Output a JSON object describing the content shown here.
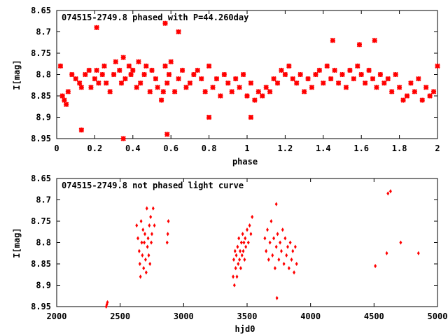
{
  "chart_data": [
    {
      "type": "scatter",
      "title": "074515-2749.8 phased with P=44.260day",
      "xlabel": "phase",
      "ylabel": "I[mag]",
      "xlim": [
        0,
        2
      ],
      "ylim": [
        8.95,
        8.65
      ],
      "y_inverted": true,
      "x_ticks": [
        0,
        0.2,
        0.4,
        0.6,
        0.8,
        1,
        1.2,
        1.4,
        1.6,
        1.8,
        2
      ],
      "x_tick_labels": [
        "0",
        "0.2",
        "0.4",
        "0.6",
        "0.8",
        "1",
        "1.2",
        "1.4",
        "1.6",
        "1.8",
        "2"
      ],
      "y_ticks": [
        8.65,
        8.7,
        8.75,
        8.8,
        8.85,
        8.9,
        8.95
      ],
      "y_tick_labels": [
        "8.65",
        "8.7",
        "8.75",
        "8.8",
        "8.85",
        "8.9",
        "8.95"
      ],
      "grid": false,
      "marker_color": "#ff0000",
      "marker": "star",
      "series": [
        {
          "x": [
            0.02,
            0.04,
            0.05,
            0.06,
            0.03,
            0.08,
            0.1,
            0.12,
            0.13,
            0.15,
            0.17,
            0.18,
            0.2,
            0.21,
            0.22,
            0.24,
            0.25,
            0.26,
            0.28,
            0.3,
            0.31,
            0.33,
            0.34,
            0.35,
            0.36,
            0.38,
            0.39,
            0.4,
            0.42,
            0.43,
            0.44,
            0.46,
            0.47,
            0.49,
            0.5,
            0.52,
            0.53,
            0.55,
            0.56,
            0.57,
            0.58,
            0.59,
            0.6,
            0.62,
            0.64,
            0.66,
            0.68,
            0.7,
            0.72,
            0.74,
            0.76,
            0.78,
            0.8,
            0.82,
            0.84,
            0.86,
            0.88,
            0.9,
            0.92,
            0.94,
            0.96,
            0.98,
            1.0,
            1.02,
            1.04,
            1.06,
            1.08,
            1.1,
            1.12,
            1.14,
            1.16,
            1.18,
            1.2,
            1.22,
            1.24,
            1.26,
            1.28,
            1.3,
            1.32,
            1.34,
            1.36,
            1.38,
            1.4,
            1.42,
            1.44,
            1.46,
            1.48,
            1.5,
            1.52,
            1.54,
            1.56,
            1.58,
            1.6,
            1.62,
            1.64,
            1.66,
            1.68,
            1.7,
            1.72,
            1.74,
            1.76,
            1.78,
            1.8,
            1.82,
            1.84,
            1.86,
            1.88,
            1.9,
            1.92,
            1.94,
            1.96,
            1.98,
            2.0,
            0.13,
            0.35,
            0.57,
            0.58,
            0.21,
            0.64,
            0.8,
            1.02,
            1.67,
            1.45,
            1.59
          ],
          "y": [
            8.78,
            8.86,
            8.87,
            8.84,
            8.85,
            8.8,
            8.81,
            8.82,
            8.83,
            8.8,
            8.79,
            8.83,
            8.81,
            8.79,
            8.82,
            8.8,
            8.78,
            8.82,
            8.84,
            8.8,
            8.77,
            8.79,
            8.82,
            8.76,
            8.81,
            8.78,
            8.8,
            8.79,
            8.83,
            8.77,
            8.82,
            8.8,
            8.78,
            8.84,
            8.79,
            8.81,
            8.83,
            8.86,
            8.84,
            8.78,
            8.82,
            8.8,
            8.77,
            8.84,
            8.81,
            8.79,
            8.83,
            8.82,
            8.8,
            8.79,
            8.81,
            8.84,
            8.78,
            8.83,
            8.81,
            8.85,
            8.8,
            8.82,
            8.84,
            8.81,
            8.83,
            8.8,
            8.85,
            8.82,
            8.86,
            8.84,
            8.85,
            8.83,
            8.84,
            8.81,
            8.82,
            8.79,
            8.8,
            8.78,
            8.81,
            8.82,
            8.8,
            8.84,
            8.81,
            8.83,
            8.8,
            8.79,
            8.82,
            8.78,
            8.81,
            8.79,
            8.82,
            8.8,
            8.83,
            8.79,
            8.81,
            8.78,
            8.8,
            8.82,
            8.79,
            8.81,
            8.83,
            8.8,
            8.82,
            8.81,
            8.84,
            8.8,
            8.83,
            8.86,
            8.85,
            8.82,
            8.84,
            8.81,
            8.86,
            8.83,
            8.85,
            8.84,
            8.78,
            8.93,
            8.95,
            8.68,
            8.94,
            8.69,
            8.7,
            8.9,
            8.9,
            8.72,
            8.72,
            8.73
          ]
        }
      ]
    },
    {
      "type": "scatter",
      "title": "074515-2749.8 not phased light curve",
      "xlabel": "hjd0",
      "ylabel": "I[mag]",
      "xlim": [
        2000,
        5000
      ],
      "ylim": [
        8.95,
        8.65
      ],
      "y_inverted": true,
      "x_ticks": [
        2000,
        2500,
        3000,
        3500,
        4000,
        4500,
        5000
      ],
      "x_tick_labels": [
        "2000",
        "2500",
        "3000",
        "3500",
        "4000",
        "4500",
        "5000"
      ],
      "y_ticks": [
        8.65,
        8.7,
        8.75,
        8.8,
        8.85,
        8.9,
        8.95
      ],
      "y_tick_labels": [
        "8.65",
        "8.7",
        "8.75",
        "8.8",
        "8.85",
        "8.9",
        "8.95"
      ],
      "grid": false,
      "marker_color": "#ff0000",
      "marker": "diamond",
      "series": [
        {
          "x": [
            2390,
            2395,
            2400,
            2630,
            2640,
            2650,
            2655,
            2660,
            2665,
            2670,
            2675,
            2680,
            2685,
            2690,
            2695,
            2700,
            2705,
            2710,
            2715,
            2720,
            2725,
            2730,
            2735,
            2740,
            2745,
            2750,
            2760,
            2770,
            2870,
            2875,
            2880,
            3390,
            3395,
            3400,
            3405,
            3410,
            3415,
            3420,
            3425,
            3430,
            3435,
            3440,
            3445,
            3450,
            3455,
            3460,
            3465,
            3470,
            3475,
            3480,
            3485,
            3490,
            3500,
            3510,
            3520,
            3530,
            3540,
            3640,
            3650,
            3660,
            3670,
            3680,
            3690,
            3700,
            3710,
            3720,
            3730,
            3740,
            3750,
            3760,
            3770,
            3780,
            3790,
            3800,
            3810,
            3820,
            3830,
            3840,
            3850,
            3860,
            3870,
            3880,
            3890,
            3730,
            3735,
            4510,
            4600,
            4610,
            4630,
            4710,
            4850
          ],
          "y": [
            8.95,
            8.945,
            8.94,
            8.76,
            8.79,
            8.82,
            8.85,
            8.88,
            8.75,
            8.8,
            8.83,
            8.77,
            8.86,
            8.8,
            8.78,
            8.84,
            8.87,
            8.72,
            8.81,
            8.79,
            8.83,
            8.76,
            8.85,
            8.74,
            8.8,
            8.78,
            8.72,
            8.76,
            8.8,
            8.78,
            8.75,
            8.88,
            8.84,
            8.9,
            8.82,
            8.86,
            8.83,
            8.88,
            8.81,
            8.85,
            8.79,
            8.84,
            8.82,
            8.86,
            8.8,
            8.83,
            8.78,
            8.82,
            8.8,
            8.84,
            8.79,
            8.81,
            8.77,
            8.8,
            8.76,
            8.78,
            8.74,
            8.79,
            8.82,
            8.77,
            8.84,
            8.8,
            8.75,
            8.83,
            8.79,
            8.86,
            8.81,
            8.78,
            8.84,
            8.8,
            8.82,
            8.77,
            8.85,
            8.79,
            8.83,
            8.81,
            8.86,
            8.8,
            8.84,
            8.82,
            8.87,
            8.81,
            8.85,
            8.71,
            8.93,
            8.855,
            8.825,
            8.685,
            8.68,
            8.8,
            8.825
          ]
        }
      ]
    }
  ]
}
